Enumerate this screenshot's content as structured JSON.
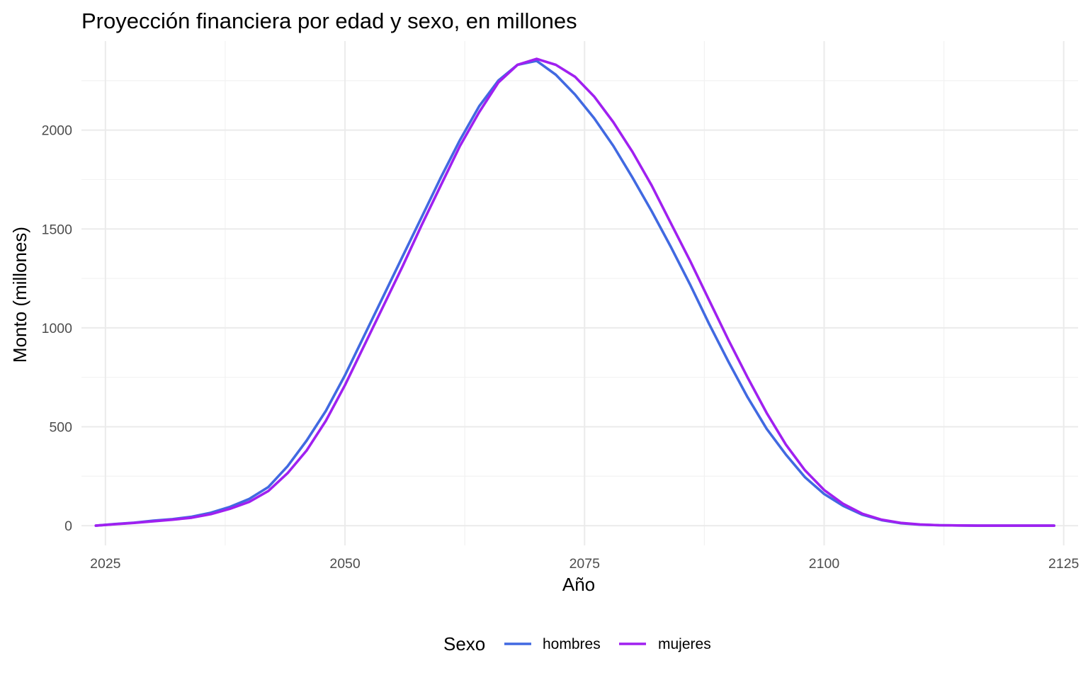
{
  "chart_data": {
    "type": "line",
    "title": "Proyección financiera por edad y sexo, en millones",
    "xlabel": "Año",
    "ylabel": "Monto (millones)",
    "xlim": [
      2022.5,
      2126.5
    ],
    "ylim": [
      -100,
      2450
    ],
    "x_ticks": [
      2025,
      2050,
      2075,
      2100,
      2125
    ],
    "y_ticks": [
      0,
      500,
      1000,
      1500,
      2000
    ],
    "grid": true,
    "legend": {
      "title": "Sexo",
      "position": "bottom"
    },
    "series": [
      {
        "name": "hombres",
        "color": "#4169E1",
        "x": [
          2024,
          2026,
          2028,
          2030,
          2032,
          2034,
          2036,
          2038,
          2040,
          2042,
          2044,
          2046,
          2048,
          2050,
          2052,
          2054,
          2056,
          2058,
          2060,
          2062,
          2064,
          2066,
          2068,
          2070,
          2072,
          2074,
          2076,
          2078,
          2080,
          2082,
          2084,
          2086,
          2088,
          2090,
          2092,
          2094,
          2096,
          2098,
          2100,
          2102,
          2104,
          2106,
          2108,
          2110,
          2112,
          2114,
          2116,
          2118,
          2120,
          2122,
          2124
        ],
        "y": [
          0,
          8,
          15,
          25,
          33,
          45,
          65,
          95,
          135,
          195,
          300,
          430,
          580,
          760,
          960,
          1160,
          1360,
          1560,
          1760,
          1950,
          2120,
          2250,
          2330,
          2350,
          2280,
          2180,
          2060,
          1920,
          1760,
          1590,
          1410,
          1220,
          1020,
          830,
          650,
          490,
          360,
          245,
          160,
          100,
          55,
          28,
          12,
          5,
          2,
          1,
          0,
          0,
          0,
          0,
          0
        ]
      },
      {
        "name": "mujeres",
        "color": "#A020F0",
        "x": [
          2024,
          2026,
          2028,
          2030,
          2032,
          2034,
          2036,
          2038,
          2040,
          2042,
          2044,
          2046,
          2048,
          2050,
          2052,
          2054,
          2056,
          2058,
          2060,
          2062,
          2064,
          2066,
          2068,
          2070,
          2072,
          2074,
          2076,
          2078,
          2080,
          2082,
          2084,
          2086,
          2088,
          2090,
          2092,
          2094,
          2096,
          2098,
          2100,
          2102,
          2104,
          2106,
          2108,
          2110,
          2112,
          2114,
          2116,
          2118,
          2120,
          2122,
          2124
        ],
        "y": [
          0,
          7,
          14,
          22,
          30,
          40,
          58,
          85,
          120,
          175,
          265,
          380,
          530,
          710,
          910,
          1110,
          1310,
          1520,
          1720,
          1920,
          2090,
          2240,
          2330,
          2360,
          2330,
          2270,
          2170,
          2040,
          1890,
          1720,
          1530,
          1340,
          1140,
          940,
          750,
          570,
          410,
          280,
          180,
          110,
          60,
          30,
          14,
          6,
          2,
          1,
          0,
          0,
          0,
          0,
          0
        ]
      }
    ]
  }
}
